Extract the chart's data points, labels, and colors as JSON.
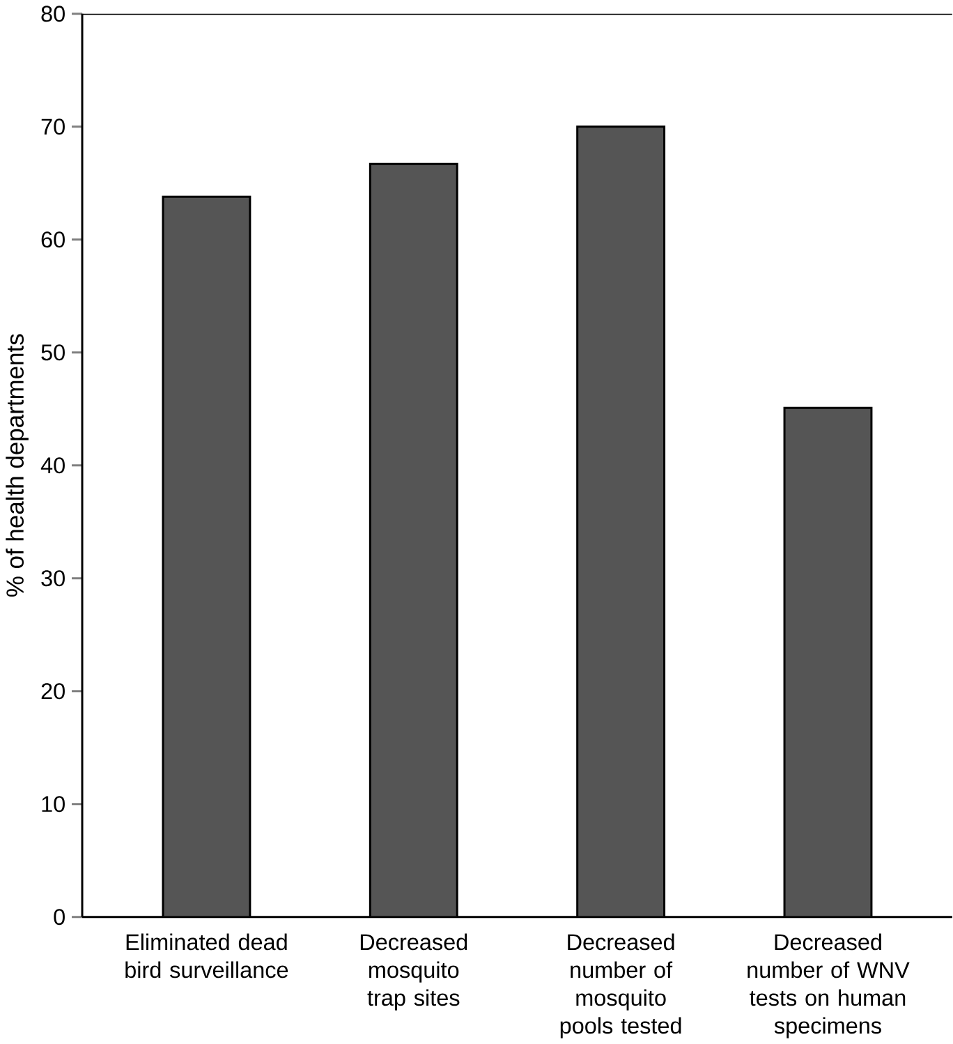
{
  "chart_data": {
    "type": "bar",
    "ylabel": "% of health departments",
    "categories": [
      "Eliminated dead bird surveillance",
      "Decreased mosquito trap sites",
      "Decreased number of mosquito pools tested",
      "Decreased number of WNV tests on human specimens"
    ],
    "values": [
      63.8,
      66.7,
      70,
      45.1
    ],
    "color": "#555555",
    "ylim": [
      0,
      80
    ],
    "yticks": [
      0,
      10,
      20,
      30,
      40,
      50,
      60,
      70,
      80
    ],
    "grid": false
  }
}
